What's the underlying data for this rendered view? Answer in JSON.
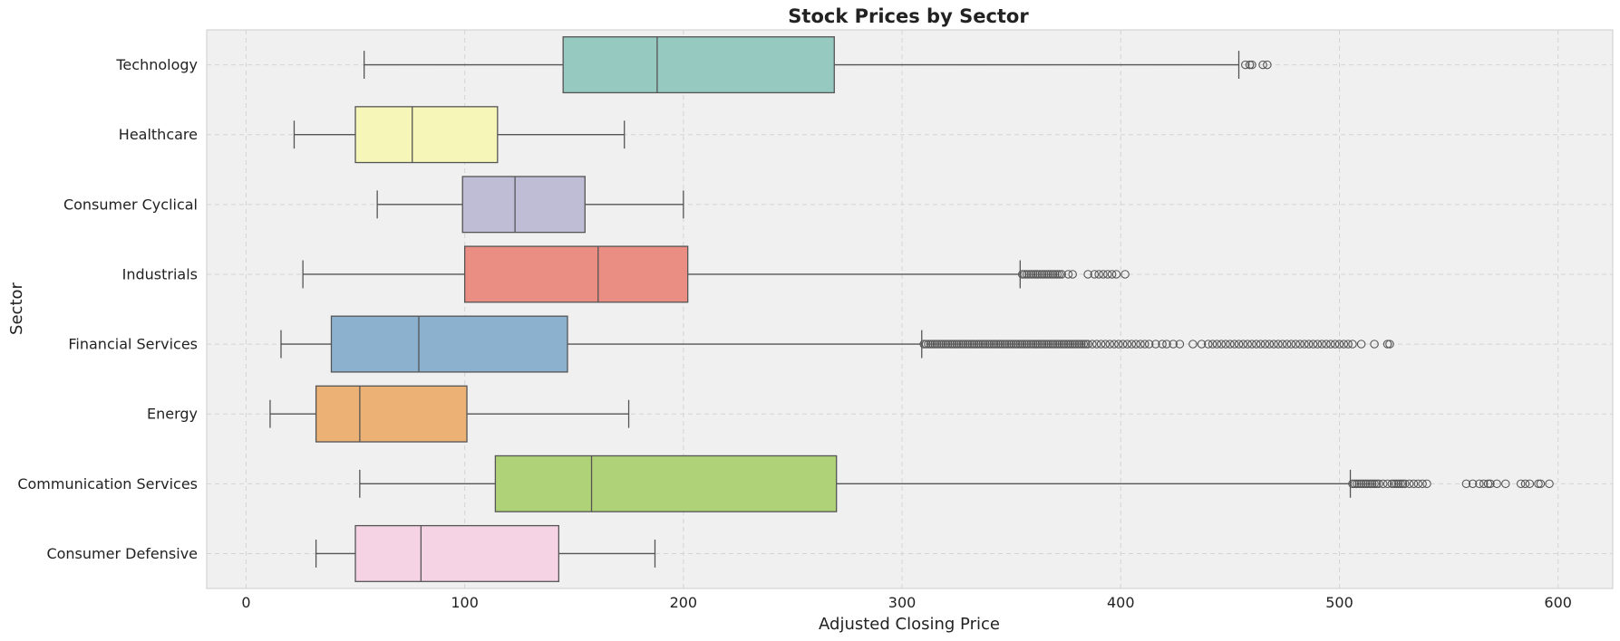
{
  "chart_data": {
    "type": "boxplot",
    "orientation": "horizontal",
    "title": "Stock Prices by Sector",
    "xlabel": "Adjusted Closing Price",
    "ylabel": "Sector",
    "xlim": [
      -18,
      625
    ],
    "xticks": [
      0,
      100,
      200,
      300,
      400,
      500,
      600
    ],
    "grid": true,
    "legend": "none",
    "colors": {
      "background": "#f0f0f0",
      "grid": "#d4d4d4",
      "line": "#555555"
    },
    "categories": [
      {
        "name": "Technology",
        "color": "#96c9bf",
        "whisker_low": 54,
        "q1": 145,
        "median": 188,
        "q3": 269,
        "whisker_high": 454,
        "outliers": [
          457,
          459,
          460,
          465,
          467
        ]
      },
      {
        "name": "Healthcare",
        "color": "#f6f6b9",
        "whisker_low": 22,
        "q1": 50,
        "median": 76,
        "q3": 115,
        "whisker_high": 173,
        "outliers": []
      },
      {
        "name": "Consumer Cyclical",
        "color": "#bfbcd5",
        "whisker_low": 60,
        "q1": 99,
        "median": 123,
        "q3": 155,
        "whisker_high": 200,
        "outliers": []
      },
      {
        "name": "Industrials",
        "color": "#ea8d83",
        "whisker_low": 26,
        "q1": 100,
        "median": 161,
        "q3": 202,
        "whisker_high": 354,
        "outliers": [
          355,
          356,
          357,
          358,
          359,
          360,
          361,
          362,
          363,
          364,
          365,
          366,
          367,
          368,
          369,
          370,
          371,
          372,
          373,
          376,
          378,
          385,
          388,
          390,
          392,
          394,
          396,
          398,
          402
        ]
      },
      {
        "name": "Financial Services",
        "color": "#8bb1cf",
        "whisker_low": 16,
        "q1": 39,
        "median": 79,
        "q3": 147,
        "whisker_high": 309,
        "outliers": [
          310,
          311,
          312,
          313,
          314,
          315,
          316,
          317,
          318,
          319,
          320,
          321,
          322,
          323,
          324,
          325,
          326,
          327,
          328,
          329,
          330,
          331,
          332,
          333,
          334,
          335,
          336,
          337,
          338,
          339,
          340,
          341,
          342,
          343,
          344,
          345,
          346,
          347,
          348,
          349,
          350,
          351,
          352,
          353,
          354,
          355,
          356,
          357,
          358,
          359,
          360,
          361,
          362,
          363,
          364,
          365,
          366,
          367,
          368,
          369,
          370,
          371,
          372,
          373,
          374,
          375,
          376,
          377,
          378,
          379,
          380,
          381,
          382,
          383,
          384,
          385,
          387,
          389,
          391,
          393,
          395,
          397,
          399,
          401,
          403,
          405,
          407,
          409,
          411,
          413,
          416,
          419,
          421,
          424,
          427,
          433,
          437,
          440,
          442,
          444,
          446,
          448,
          450,
          452,
          454,
          456,
          458,
          460,
          462,
          464,
          466,
          468,
          470,
          472,
          474,
          476,
          478,
          480,
          482,
          484,
          486,
          488,
          490,
          492,
          494,
          496,
          498,
          500,
          502,
          504,
          506,
          510,
          516,
          522,
          523
        ]
      },
      {
        "name": "Energy",
        "color": "#ebb175",
        "whisker_low": 11,
        "q1": 32,
        "median": 52,
        "q3": 101,
        "whisker_high": 175,
        "outliers": []
      },
      {
        "name": "Communication Services",
        "color": "#afd278",
        "whisker_low": 52,
        "q1": 114,
        "median": 158,
        "q3": 270,
        "whisker_high": 505,
        "outliers": [
          506,
          507,
          508,
          509,
          510,
          511,
          512,
          513,
          514,
          515,
          516,
          517,
          518,
          520,
          522,
          524,
          525,
          526,
          527,
          528,
          529,
          530,
          532,
          534,
          536,
          538,
          540,
          558,
          561,
          564,
          566,
          568,
          569,
          572,
          576,
          583,
          585,
          587,
          591,
          592,
          596
        ]
      },
      {
        "name": "Consumer Defensive",
        "color": "#f5d3e5",
        "whisker_low": 32,
        "q1": 50,
        "median": 80,
        "q3": 143,
        "whisker_high": 187,
        "outliers": []
      }
    ]
  }
}
